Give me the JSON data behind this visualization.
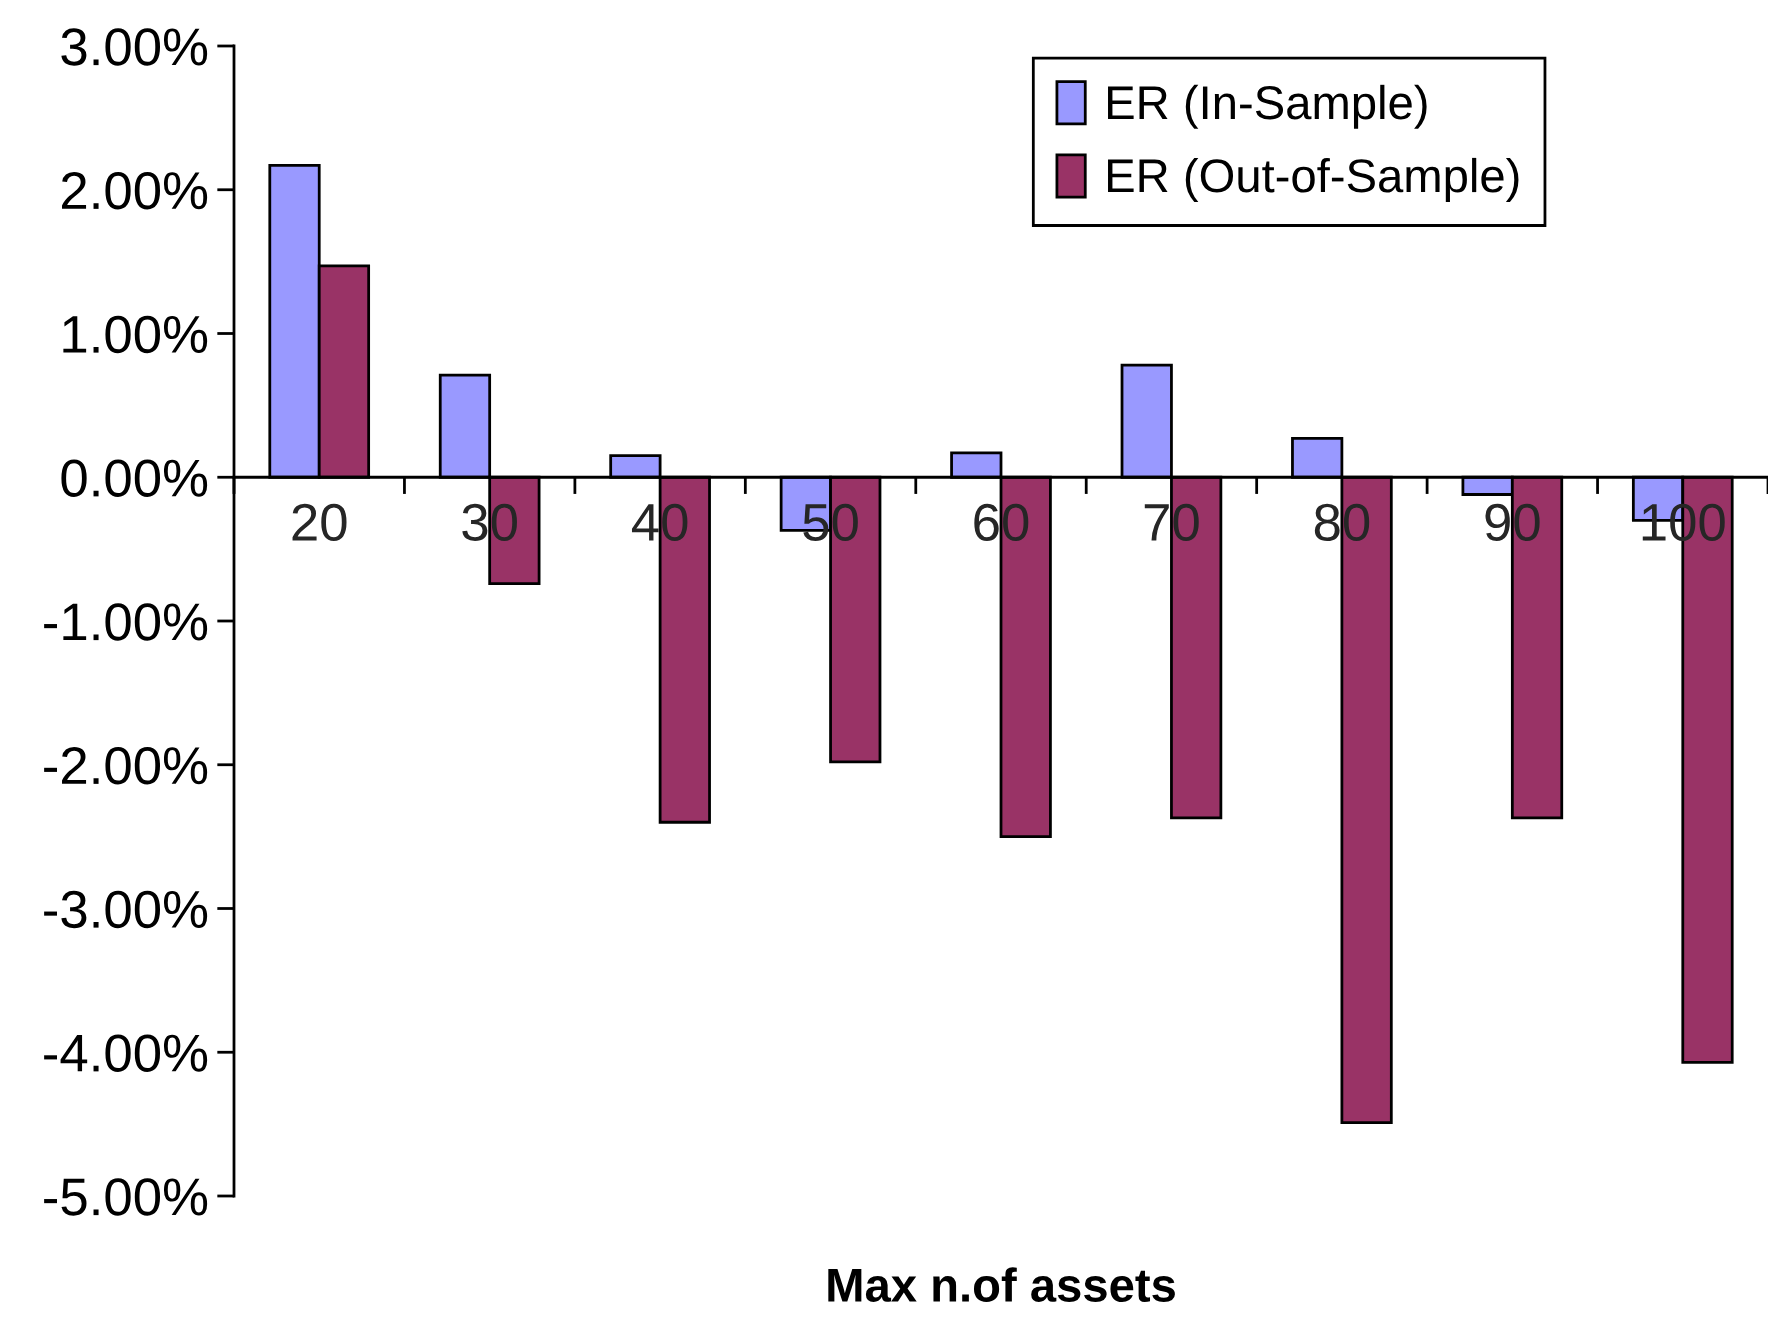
{
  "chart_data": {
    "type": "bar",
    "categories": [
      "20",
      "30",
      "40",
      "50",
      "60",
      "70",
      "80",
      "90",
      "100"
    ],
    "series": [
      {
        "name": "ER (In-Sample)",
        "color": "#9999ff",
        "values": [
          2.17,
          0.71,
          0.15,
          -0.37,
          0.17,
          0.78,
          0.27,
          -0.12,
          -0.3
        ]
      },
      {
        "name": "ER (Out-of-Sample)",
        "color": "#993366",
        "values": [
          1.47,
          -0.74,
          -2.4,
          -1.98,
          -2.5,
          -2.37,
          -4.49,
          -2.37,
          -4.07
        ]
      }
    ],
    "xlabel": "Max n.of assets",
    "ylim": [
      -5,
      3
    ],
    "yticks": [
      {
        "value": 3,
        "label": "3.00%"
      },
      {
        "value": 2,
        "label": "2.00%"
      },
      {
        "value": 1,
        "label": "1.00%"
      },
      {
        "value": 0,
        "label": "0.00%"
      },
      {
        "value": -1,
        "label": "-1.00%"
      },
      {
        "value": -2,
        "label": "-2.00%"
      },
      {
        "value": -3,
        "label": "-3.00%"
      },
      {
        "value": -4,
        "label": "-4.00%"
      },
      {
        "value": -5,
        "label": "-5.00%"
      }
    ],
    "legend": "top right",
    "grid": false
  }
}
